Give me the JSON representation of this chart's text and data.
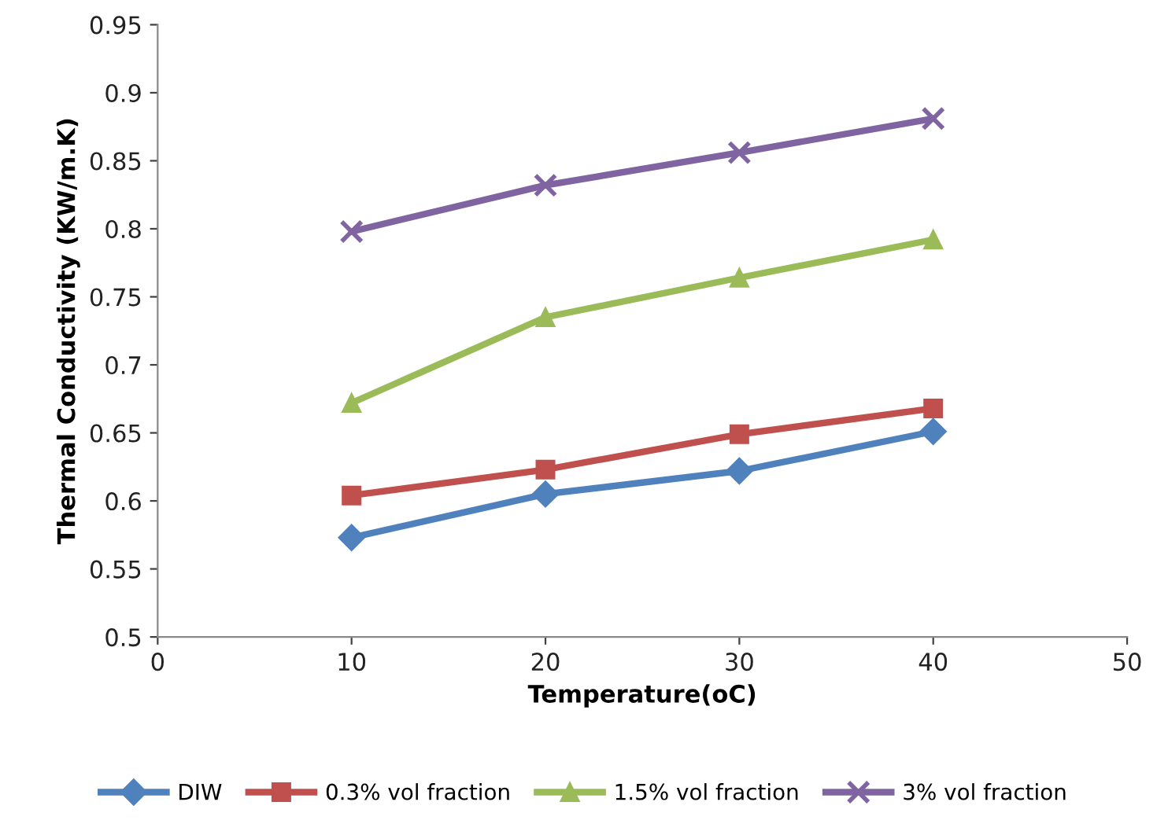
{
  "chart_data": {
    "type": "line",
    "xlabel": "Temperature(oC)",
    "ylabel": "Thermal Conductivity (KW/m.K)",
    "x": [
      10,
      20,
      30,
      40
    ],
    "series": [
      {
        "name": "DIW",
        "color": "#4f81bd",
        "marker": "diamond",
        "values": [
          0.573,
          0.605,
          0.622,
          0.651
        ]
      },
      {
        "name": "0.3% vol fraction",
        "color": "#c0504d",
        "marker": "square",
        "values": [
          0.604,
          0.623,
          0.649,
          0.668
        ]
      },
      {
        "name": "1.5% vol fraction",
        "color": "#9bbb59",
        "marker": "triangle",
        "values": [
          0.672,
          0.735,
          0.764,
          0.792
        ]
      },
      {
        "name": "3% vol fraction",
        "color": "#8064a2",
        "marker": "cross",
        "values": [
          0.798,
          0.832,
          0.856,
          0.881
        ]
      }
    ],
    "xlim": [
      0,
      50
    ],
    "xticks": [
      0,
      10,
      20,
      30,
      40,
      50
    ],
    "ylim": [
      0.5,
      0.95
    ],
    "yticks": [
      0.5,
      0.55,
      0.6,
      0.65,
      0.7,
      0.75,
      0.8,
      0.85,
      0.9,
      0.95
    ],
    "grid": false,
    "legend": "bottom",
    "line_style": "solid"
  }
}
